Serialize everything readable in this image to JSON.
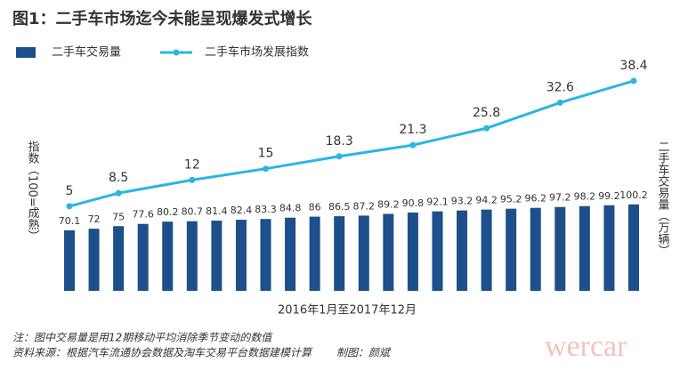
{
  "chart_data": {
    "type": "bar-line",
    "title": "图1：二手车市场迄今未能呈现爆发式增长",
    "x_label": "2016年1月至2017年12月",
    "y_label": "指数（100=成熟）",
    "y2_label": "二手车交易量（万辆）",
    "categories": [
      null,
      null,
      null,
      null,
      null,
      null,
      null,
      null,
      null,
      null,
      null,
      null,
      null,
      null,
      null,
      null,
      null,
      null,
      null,
      null,
      null,
      null,
      null,
      null
    ],
    "series": [
      {
        "name": "二手车交易量",
        "type": "bar",
        "axis": "y2",
        "color": "#1d4f8b",
        "values": [
          70.1,
          72,
          75,
          77.6,
          80.2,
          80.7,
          81.4,
          82.4,
          83.3,
          84.8,
          86,
          86.5,
          87.2,
          89.2,
          90.8,
          92.1,
          93.2,
          94.2,
          95.2,
          96.2,
          97.2,
          98.2,
          99.2,
          100.2
        ]
      },
      {
        "name": "二手车市场发展指数",
        "type": "line",
        "color": "#2bb5e2",
        "x": [
          0,
          2,
          5,
          8,
          11,
          14,
          17,
          20,
          23
        ],
        "values": [
          5,
          8.5,
          12,
          15,
          18.3,
          21.3,
          25.8,
          32.6,
          38.4
        ]
      }
    ],
    "notes": [
      "注：图中交易量是用12期移动平均消除季节变动的数值",
      "资料来源：根据汽车流通协会数据及淘车交易平台数据建模计算",
      "制图：颜斌"
    ],
    "watermark": "wercar"
  }
}
